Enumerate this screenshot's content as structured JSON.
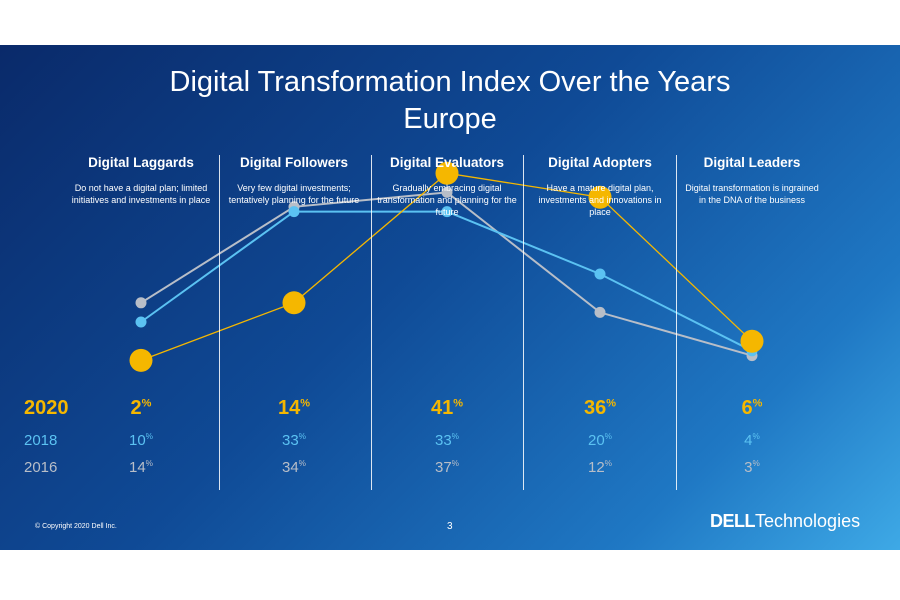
{
  "slide": {
    "title_line1": "Digital Transformation Index Over the Years",
    "title_line2": "Europe",
    "copyright": "© Copyright 2020 Dell Inc.",
    "page_number": "3",
    "brand_dell": "DELL",
    "brand_technologies": "Technologies"
  },
  "colors": {
    "2020": "#f5b700",
    "2018": "#5bc2f2",
    "2016": "#b8bec8"
  },
  "chart_data": {
    "type": "line",
    "title": "Digital Transformation Index Over the Years",
    "subtitle": "Europe",
    "categories": [
      {
        "name": "Digital Laggards",
        "description": "Do not have a digital plan; limited initiatives and investments in place"
      },
      {
        "name": "Digital Followers",
        "description": "Very few digital investments; tentatively planning for the future"
      },
      {
        "name": "Digital Evaluators",
        "description": "Gradually embracing digital transformation and planning for the future"
      },
      {
        "name": "Digital Adopters",
        "description": "Have a mature digital plan, investments and innovations in place"
      },
      {
        "name": "Digital Leaders",
        "description": "Digital transformation is ingrained in the DNA of the business"
      }
    ],
    "series": [
      {
        "name": "2020",
        "values": [
          2,
          14,
          41,
          36,
          6
        ]
      },
      {
        "name": "2018",
        "values": [
          10,
          33,
          33,
          20,
          4
        ]
      },
      {
        "name": "2016",
        "values": [
          14,
          34,
          37,
          12,
          3
        ]
      }
    ],
    "unit": "%",
    "ylim": [
      0,
      45
    ],
    "grid": false,
    "legend": "none"
  }
}
